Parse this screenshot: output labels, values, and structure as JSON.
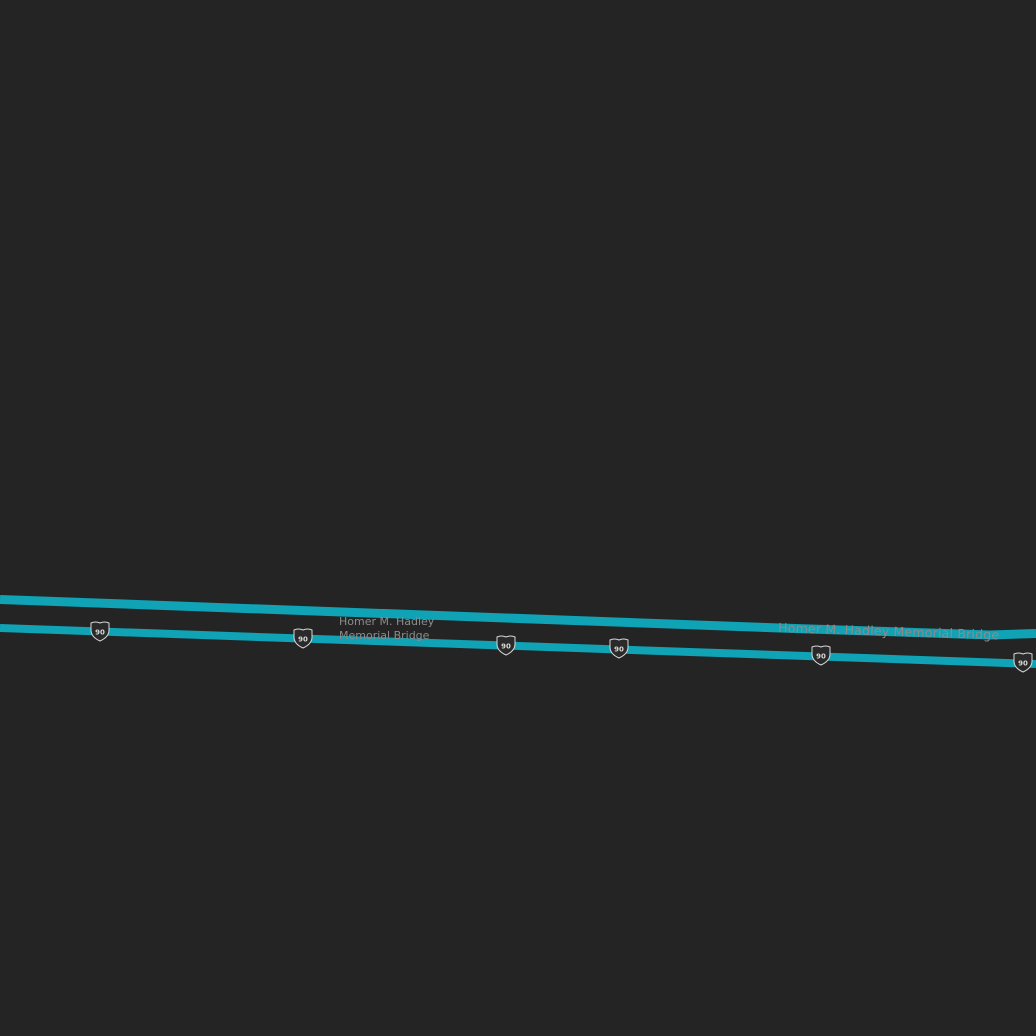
{
  "map": {
    "background_color": "#242424",
    "road_color": "#0fa3b5",
    "label_color": "#8c8c8c",
    "shield_fill": "#2a2a2a",
    "shield_stroke": "#d8d8d8",
    "roads": [
      {
        "id": "bridge-north-span",
        "name": "Homer M. Hadley Memorial Bridge"
      },
      {
        "id": "bridge-south-span",
        "name": "Homer M. Hadley Memorial Bridge"
      }
    ],
    "labels": {
      "bridge_stacked_line1": "Homer M. Hadley",
      "bridge_stacked_line2": "Memorial Bridge",
      "bridge_along_road": "Homer M. Hadley Memorial Bridge"
    },
    "shields": {
      "route_type": "interstate",
      "icon": "interstate-shield-icon",
      "number": "90",
      "count": 6
    }
  }
}
